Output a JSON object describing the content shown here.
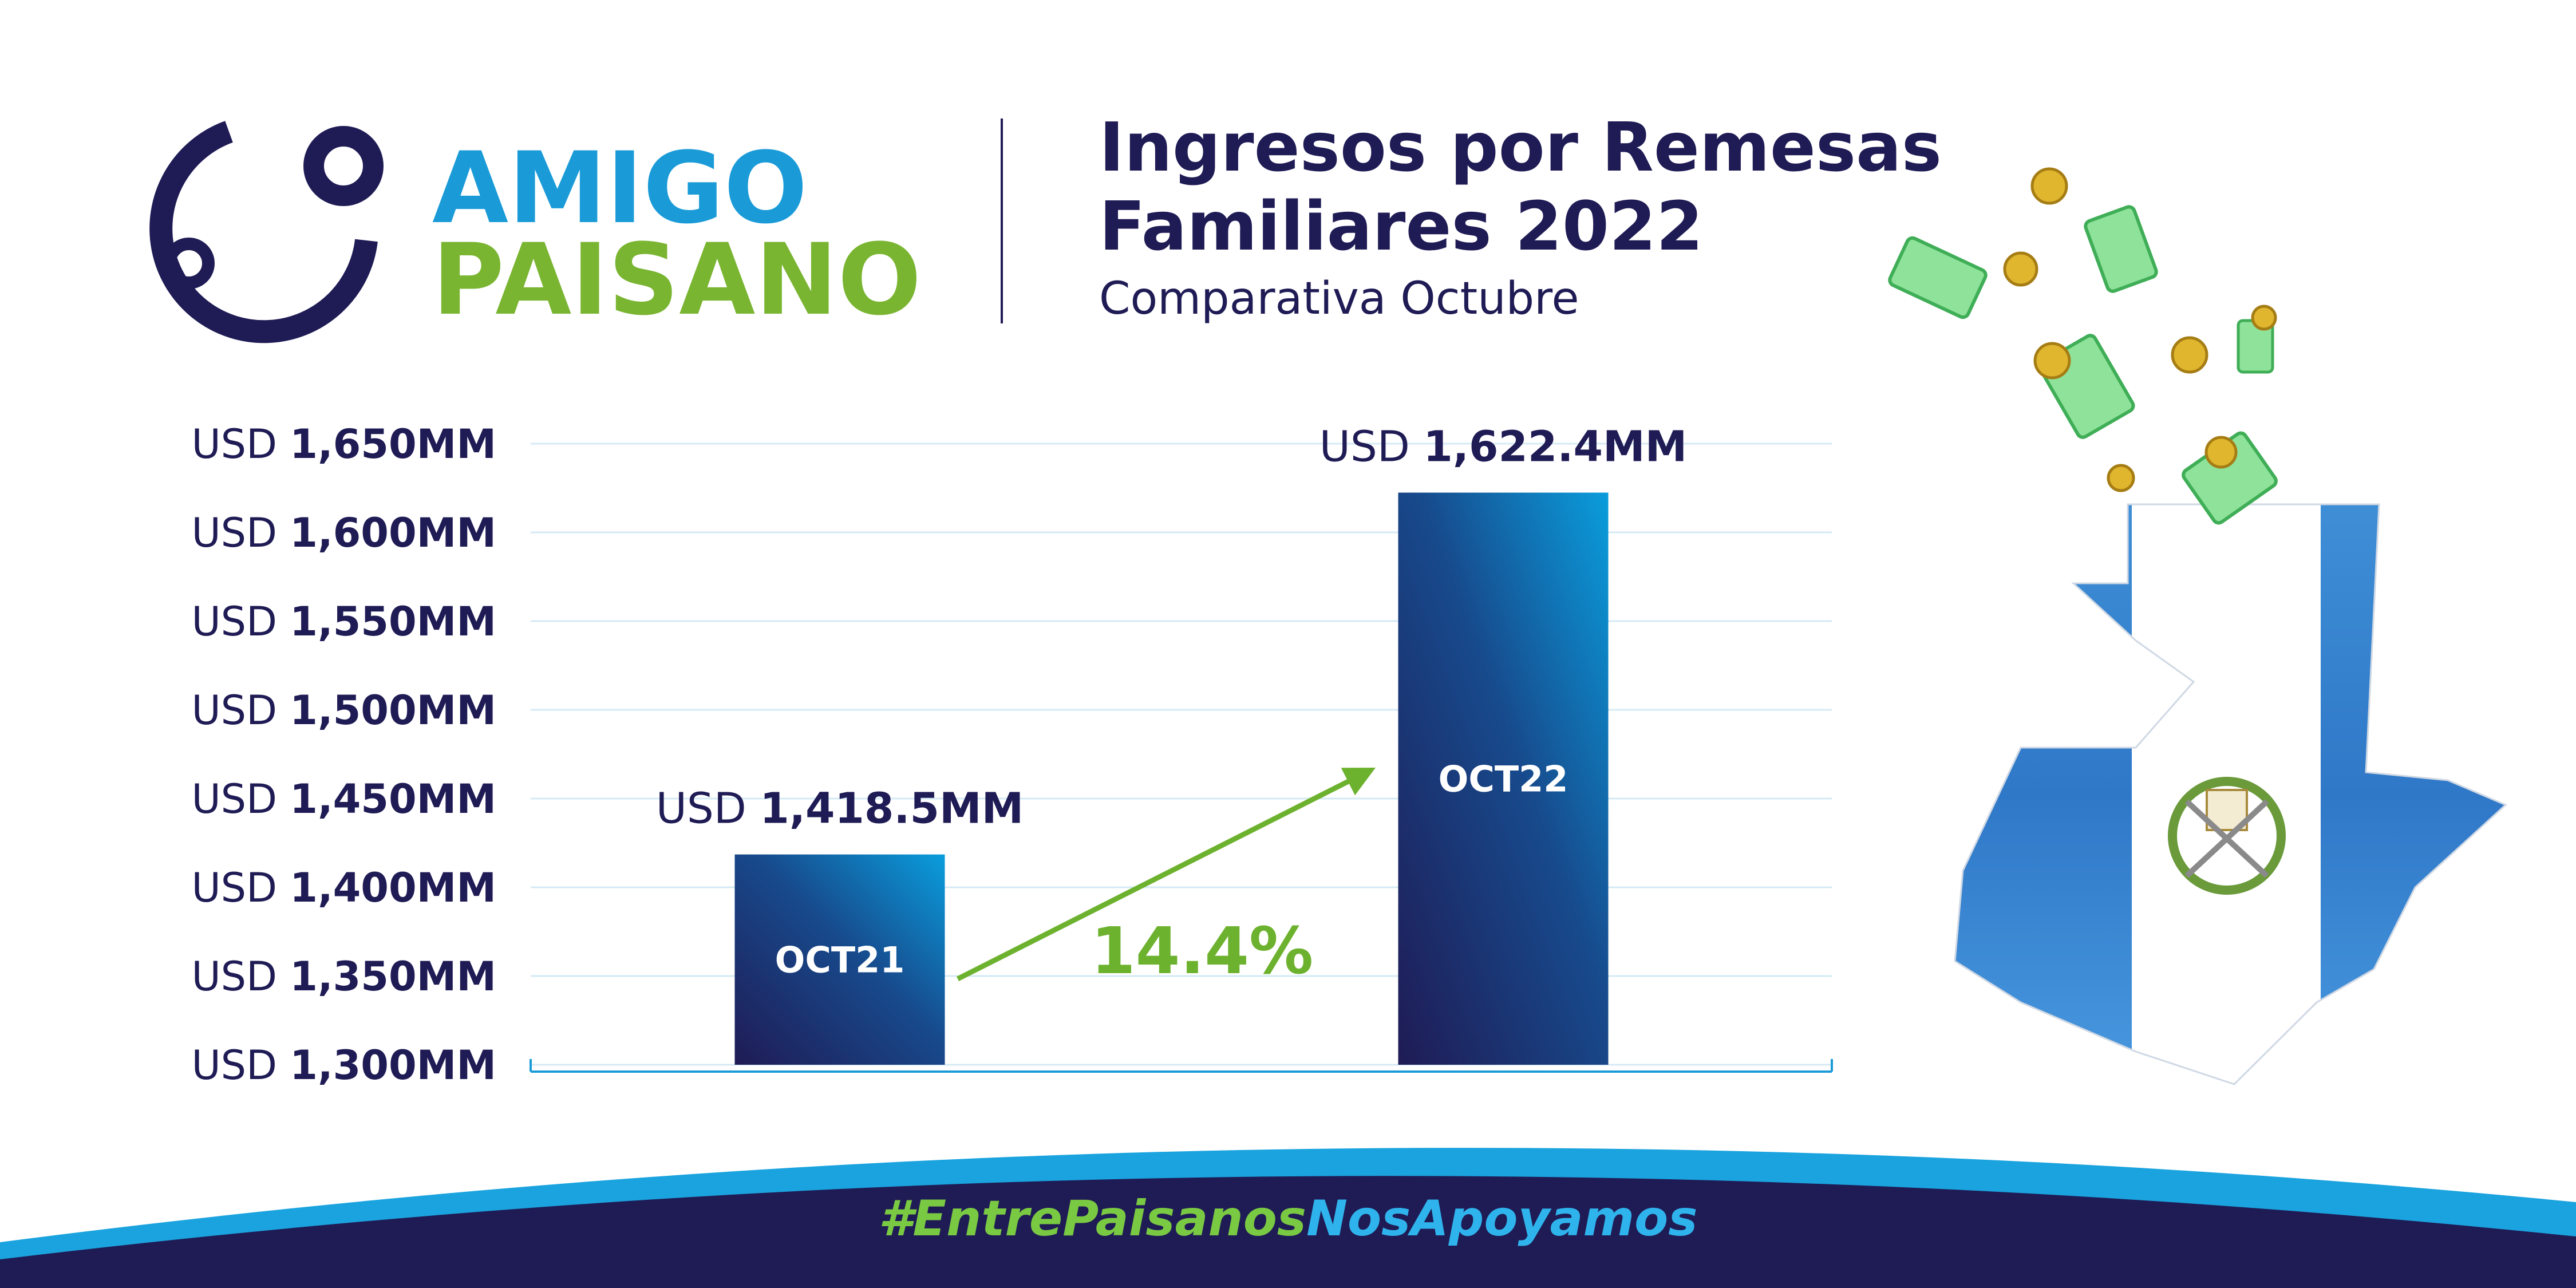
{
  "brand": {
    "line1": "AMIGO",
    "line2": "PAISANO"
  },
  "hashtag": "#EntrePaisanosNosApoyamos",
  "chart_data": {
    "type": "bar",
    "title": [
      "Ingresos por Remesas",
      "Familiares 2022"
    ],
    "subtitle": "Comparativa Octubre",
    "categories": [
      "OCT21",
      "OCT22"
    ],
    "values": [
      1418.5,
      1622.4
    ],
    "value_labels": [
      "USD 1,418.5MM",
      "USD 1,622.4MM"
    ],
    "annotation": "14.4%",
    "ylim": [
      1300,
      1650
    ],
    "yticks": [
      {
        "value": 1300,
        "label": "USD 1,300MM"
      },
      {
        "value": 1350,
        "label": "USD 1,350MM"
      },
      {
        "value": 1400,
        "label": "USD 1,400MM"
      },
      {
        "value": 1450,
        "label": "USD 1,450MM"
      },
      {
        "value": 1500,
        "label": "USD 1,500MM"
      },
      {
        "value": 1550,
        "label": "USD 1,550MM"
      },
      {
        "value": 1600,
        "label": "USD 1,600MM"
      },
      {
        "value": 1650,
        "label": "USD 1,650MM"
      }
    ],
    "grid": true
  }
}
